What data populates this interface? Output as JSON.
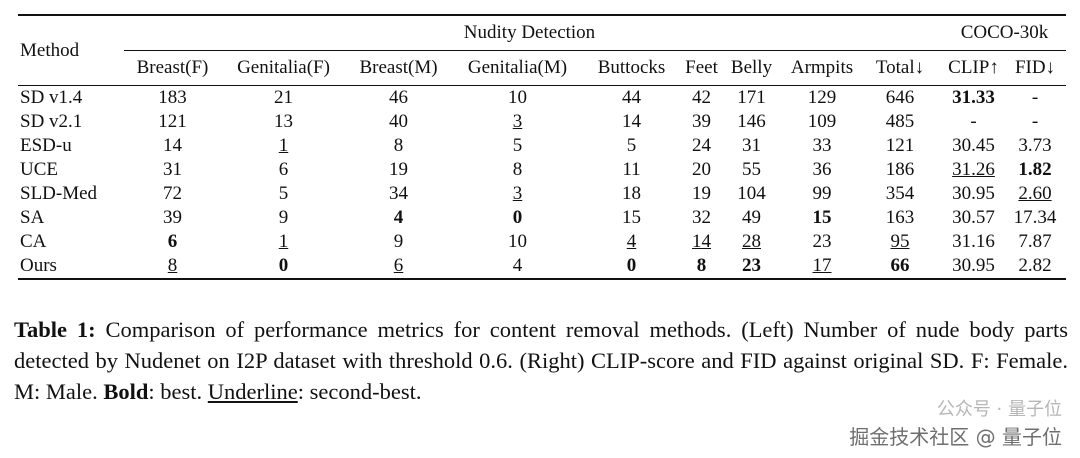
{
  "table": {
    "header": {
      "method": "Method",
      "group_left": "Nudity Detection",
      "group_right": "COCO-30k",
      "columns": [
        "Breast(F)",
        "Genitalia(F)",
        "Breast(M)",
        "Genitalia(M)",
        "Buttocks",
        "Feet",
        "Belly",
        "Armpits",
        "Total↓",
        "CLIP↑",
        "FID↓"
      ]
    },
    "rows": [
      {
        "method": "SD v1.4",
        "cells": [
          "183",
          "21",
          "46",
          "10",
          "44",
          "42",
          "171",
          "129",
          "646",
          {
            "text": "31.33",
            "bold": true
          },
          "-"
        ]
      },
      {
        "method": "SD v2.1",
        "cells": [
          "121",
          "13",
          "40",
          {
            "text": "3",
            "underline": true
          },
          "14",
          "39",
          "146",
          "109",
          "485",
          "-",
          "-"
        ]
      },
      {
        "method": "ESD-u",
        "cells": [
          "14",
          {
            "text": "1",
            "underline": true
          },
          "8",
          "5",
          "5",
          "24",
          "31",
          "33",
          "121",
          "30.45",
          "3.73"
        ]
      },
      {
        "method": "UCE",
        "cells": [
          "31",
          "6",
          "19",
          "8",
          "11",
          "20",
          "55",
          "36",
          "186",
          {
            "text": "31.26",
            "underline": true
          },
          {
            "text": "1.82",
            "bold": true
          }
        ]
      },
      {
        "method": "SLD-Med",
        "cells": [
          "72",
          "5",
          "34",
          {
            "text": "3",
            "underline": true
          },
          "18",
          "19",
          "104",
          "99",
          "354",
          "30.95",
          {
            "text": "2.60",
            "underline": true
          }
        ]
      },
      {
        "method": "SA",
        "cells": [
          "39",
          "9",
          {
            "text": "4",
            "bold": true
          },
          {
            "text": "0",
            "bold": true
          },
          "15",
          "32",
          "49",
          {
            "text": "15",
            "bold": true
          },
          "163",
          "30.57",
          "17.34"
        ]
      },
      {
        "method": "CA",
        "cells": [
          {
            "text": "6",
            "bold": true
          },
          {
            "text": "1",
            "underline": true
          },
          "9",
          "10",
          {
            "text": "4",
            "underline": true
          },
          {
            "text": "14",
            "underline": true
          },
          {
            "text": "28",
            "underline": true
          },
          "23",
          {
            "text": "95",
            "underline": true
          },
          "31.16",
          "7.87"
        ]
      },
      {
        "method": "Ours",
        "cells": [
          {
            "text": "8",
            "underline": true
          },
          {
            "text": "0",
            "bold": true
          },
          {
            "text": "6",
            "underline": true
          },
          "4",
          {
            "text": "0",
            "bold": true
          },
          {
            "text": "8",
            "bold": true
          },
          {
            "text": "23",
            "bold": true
          },
          {
            "text": "17",
            "underline": true
          },
          {
            "text": "66",
            "bold": true
          },
          "30.95",
          "2.82"
        ]
      }
    ]
  },
  "caption": [
    {
      "text": "Table 1:",
      "bold": true
    },
    {
      "text": " Comparison of performance metrics for content removal methods. (Left) Number of nude body parts detected by Nudenet on I2P dataset with threshold 0.6. (Right) CLIP-score and FID against original SD. F: Female. M: Male. "
    },
    {
      "text": "Bold",
      "bold": true
    },
    {
      "text": ": best. "
    },
    {
      "text": "Underline",
      "underline": true
    },
    {
      "text": ": second-best."
    }
  ],
  "watermark": {
    "line1": "公众号 · 量子位",
    "line2": "掘金技术社区 @ 量子位"
  }
}
